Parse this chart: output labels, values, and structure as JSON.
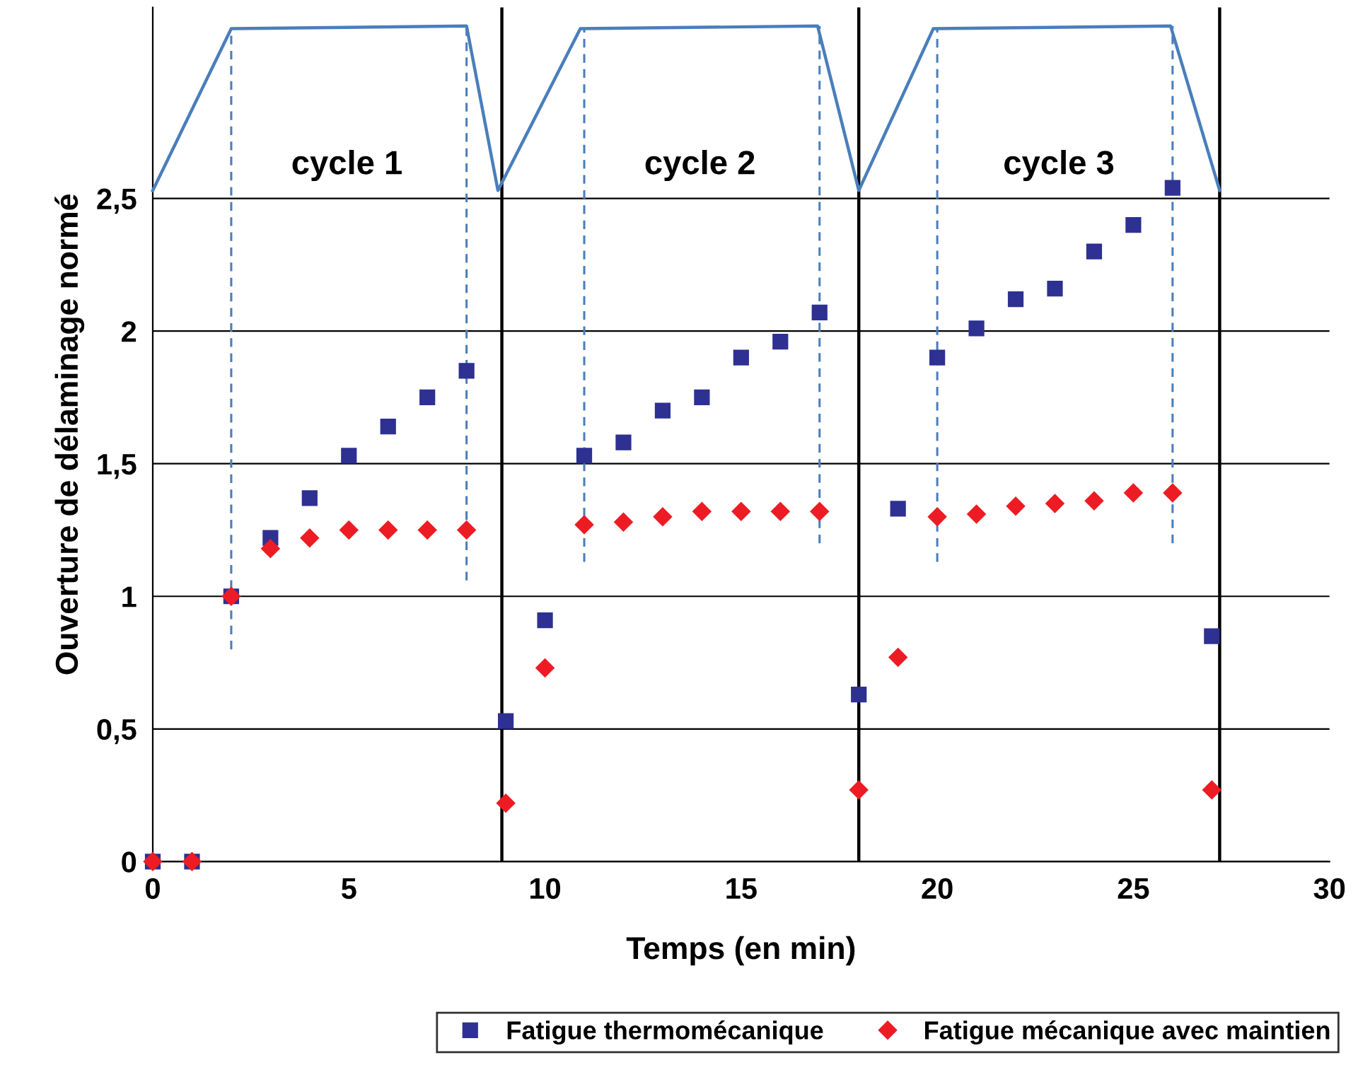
{
  "chart_data": {
    "type": "scatter",
    "xlabel": "Temps (en min)",
    "ylabel": "Ouverture de délaminage normé",
    "xlim": [
      0,
      30
    ],
    "ylim": [
      0,
      3.22
    ],
    "xticks": [
      0,
      5,
      10,
      15,
      20,
      25,
      30
    ],
    "yticks": [
      0,
      {
        "value": 0.5,
        "label": "0,5"
      },
      1,
      {
        "value": 1.5,
        "label": "1,5"
      },
      2,
      {
        "value": 2.5,
        "label": "2,5"
      }
    ],
    "grid": "y",
    "legend": "bottom",
    "series": [
      {
        "name": "Fatigue thermomécanique",
        "color": "#2e3192",
        "marker": "square",
        "x": [
          0,
          1,
          2,
          3,
          4,
          5,
          6,
          7,
          8,
          9,
          10,
          11,
          12,
          13,
          14,
          15,
          16,
          17,
          18,
          19,
          20,
          21,
          22,
          23,
          24,
          25,
          26,
          27
        ],
        "values": [
          0,
          0,
          1.0,
          1.22,
          1.37,
          1.53,
          1.64,
          1.75,
          1.85,
          0.53,
          0.91,
          1.53,
          1.58,
          1.7,
          1.75,
          1.9,
          1.96,
          2.07,
          0.63,
          1.33,
          1.9,
          2.01,
          2.12,
          2.16,
          2.3,
          2.4,
          2.54,
          0.85
        ]
      },
      {
        "name": "Fatigue mécanique avec maintien",
        "color": "#ed1c24",
        "marker": "diamond",
        "x": [
          0,
          1,
          2,
          3,
          4,
          5,
          6,
          7,
          8,
          9,
          10,
          11,
          12,
          13,
          14,
          15,
          16,
          17,
          18,
          19,
          20,
          21,
          22,
          23,
          24,
          25,
          26,
          27
        ],
        "values": [
          0,
          0,
          1.0,
          1.18,
          1.22,
          1.25,
          1.25,
          1.25,
          1.25,
          0.22,
          0.73,
          1.27,
          1.28,
          1.3,
          1.32,
          1.32,
          1.32,
          1.32,
          0.27,
          0.77,
          1.3,
          1.31,
          1.34,
          1.35,
          1.36,
          1.39,
          1.39,
          0.27
        ]
      },
      {
        "type": "line",
        "color": "#4a7ebb",
        "line_style": "solid",
        "marker": "none",
        "x": [
          0,
          2,
          8,
          8.8,
          10.9,
          16.95,
          18.0,
          19.9,
          25.95,
          27.2
        ],
        "values": [
          2.53,
          3.14,
          3.15,
          2.53,
          3.14,
          3.15,
          2.53,
          3.14,
          3.15,
          2.53
        ]
      },
      {
        "type": "line",
        "color": "#4a7ebb",
        "line_style": "dashed",
        "marker": "none",
        "x": [
          2,
          2
        ],
        "values": [
          0.8,
          3.14
        ]
      },
      {
        "type": "line",
        "color": "#4a7ebb",
        "line_style": "dashed",
        "marker": "none",
        "x": [
          8,
          8
        ],
        "values": [
          1.06,
          3.15
        ]
      },
      {
        "type": "line",
        "color": "#4a7ebb",
        "line_style": "dashed",
        "marker": "none",
        "x": [
          11,
          11
        ],
        "values": [
          1.13,
          3.14
        ]
      },
      {
        "type": "line",
        "color": "#4a7ebb",
        "line_style": "dashed",
        "marker": "none",
        "x": [
          17,
          17
        ],
        "values": [
          1.2,
          3.15
        ]
      },
      {
        "type": "line",
        "color": "#4a7ebb",
        "line_style": "dashed",
        "marker": "none",
        "x": [
          20,
          20
        ],
        "values": [
          1.13,
          3.14
        ]
      },
      {
        "type": "line",
        "color": "#4a7ebb",
        "line_style": "dashed",
        "marker": "none",
        "x": [
          26,
          26
        ],
        "values": [
          1.2,
          3.15
        ]
      }
    ],
    "ref_lines": [
      {
        "axis": "x",
        "value": 8.9,
        "color": "#000000"
      },
      {
        "axis": "x",
        "value": 18,
        "color": "#000000"
      },
      {
        "axis": "x",
        "value": 27.2,
        "color": "#000000"
      }
    ],
    "annotations": [
      "cycle 1",
      "cycle 2",
      "cycle 3"
    ]
  }
}
